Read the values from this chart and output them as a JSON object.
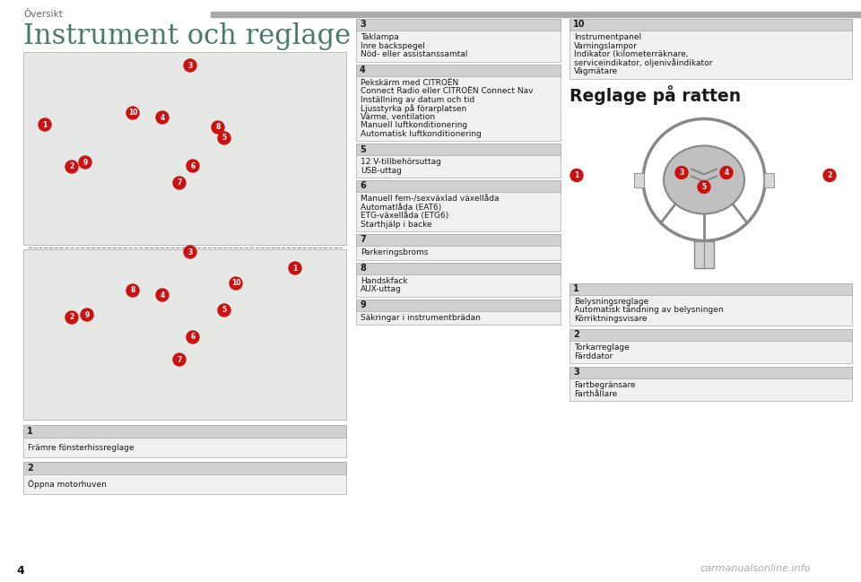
{
  "page_number": "4",
  "header_text": "Översikt",
  "main_title": "Instrument och reglage",
  "background_color": "#ffffff",
  "box_header_bg": "#d0d0d0",
  "box_body_bg": "#f0f0f0",
  "text_color": "#1a1a1a",
  "title_color": "#4a7a6a",
  "header_color": "#666666",
  "red_circle_color": "#cc1111",
  "bar_color": "#aaaaaa",
  "left_boxes": [
    {
      "num": "1",
      "lines": [
        "Främre fönsterhissreglage"
      ]
    },
    {
      "num": "2",
      "lines": [
        "Öppna motorhuven"
      ]
    }
  ],
  "mid_boxes": [
    {
      "num": "3",
      "lines": [
        "Taklampa",
        "Inre backspegel",
        "Nöd- eller assistanssamtal"
      ]
    },
    {
      "num": "4",
      "lines": [
        "Pekskärm med CITROËN",
        "Connect Radio eller CITROËN Connect Nav",
        "Inställning av datum och tid",
        "Ljusstyrka på förarplatsen",
        "Värme, ventilation",
        "Manuell luftkonditionering",
        "Automatisk luftkonditionering"
      ]
    },
    {
      "num": "5",
      "lines": [
        "12 V-tillbehörsuttag",
        "USB-uttag"
      ]
    },
    {
      "num": "6",
      "lines": [
        "Manuell fem-/sexväxlad växellåda",
        "Automatlåda (EAT6)",
        "ETG-växellåda (ETG6)",
        "Starthjälp i backe"
      ]
    },
    {
      "num": "7",
      "lines": [
        "Parkeringsbroms"
      ]
    },
    {
      "num": "8",
      "lines": [
        "Handskfack",
        "AUX-uttag"
      ]
    },
    {
      "num": "9",
      "lines": [
        "Säkringar i instrumentbrädan"
      ]
    }
  ],
  "right_boxes_top": [
    {
      "num": "10",
      "lines": [
        "Instrumentpanel",
        "Varningslampor",
        "Indikator (kilometerräknare,",
        "serviceindikator, oljenivåindikator",
        "Vägmätare"
      ]
    }
  ],
  "right_section_title": "Reglage på ratten",
  "right_boxes_bottom": [
    {
      "num": "1",
      "lines": [
        "Belysningsreglage",
        "Automatisk tändning av belysningen",
        "Körriktningsvisare"
      ]
    },
    {
      "num": "2",
      "lines": [
        "Torkarreglage",
        "Färddator"
      ]
    },
    {
      "num": "3",
      "lines": [
        "Fartbegränsare",
        "Farthållare"
      ]
    }
  ],
  "watermark": "carmanualsonline.info"
}
